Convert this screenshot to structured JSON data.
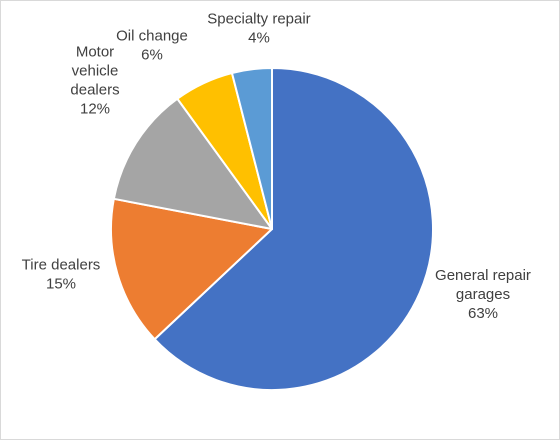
{
  "chart_data": {
    "type": "pie",
    "title": "",
    "start_angle_deg": 0,
    "direction": "clockwise",
    "legend": "none",
    "slices": [
      {
        "label_lines": [
          "General repair",
          "garages"
        ],
        "value": 63,
        "value_label": "63%",
        "color": "#4472C4"
      },
      {
        "label_lines": [
          "Tire dealers"
        ],
        "value": 15,
        "value_label": "15%",
        "color": "#ED7D31"
      },
      {
        "label_lines": [
          "Motor",
          "vehicle",
          "dealers"
        ],
        "value": 12,
        "value_label": "12%",
        "color": "#A5A5A5"
      },
      {
        "label_lines": [
          "Oil change"
        ],
        "value": 6,
        "value_label": "6%",
        "color": "#FFC000"
      },
      {
        "label_lines": [
          "Specialty repair"
        ],
        "value": 4,
        "value_label": "4%",
        "color": "#5B9BD5"
      }
    ]
  }
}
